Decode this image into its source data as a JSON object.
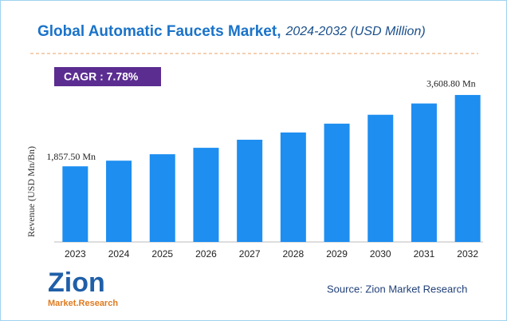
{
  "chart_data": {
    "type": "bar",
    "title": "Global Automatic Faucets Market,",
    "subtitle": "2024-2032 (USD Million)",
    "annotation": "CAGR : 7.78%",
    "y_label": "Revenue (USD Mn/Bn)",
    "categories": [
      "2023",
      "2024",
      "2025",
      "2026",
      "2027",
      "2028",
      "2029",
      "2030",
      "2031",
      "2032"
    ],
    "values": [
      1857.5,
      1996,
      2154,
      2312,
      2510,
      2688,
      2905,
      3123,
      3400,
      3608.8
    ],
    "value_labels": [
      "1,857.50 Mn",
      null,
      null,
      null,
      null,
      null,
      null,
      null,
      null,
      "3,608.80 Mn"
    ],
    "color": "#1e8ef0",
    "ylim": [
      0,
      4000
    ],
    "source": "Source: Zion Market Research",
    "logo": {
      "name": "Zion",
      "tagline": "Market.Research"
    }
  }
}
